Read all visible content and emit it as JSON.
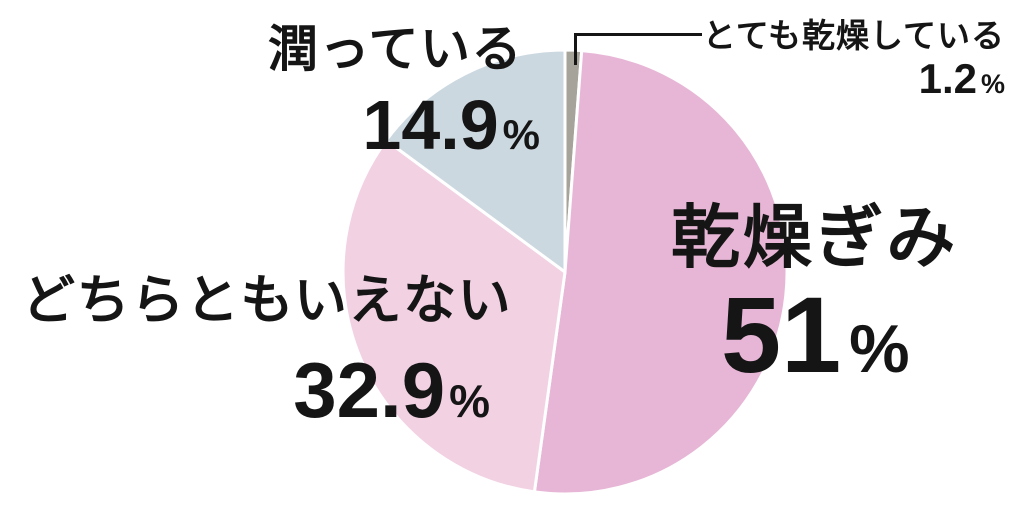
{
  "chart_data": {
    "type": "pie",
    "title": "",
    "unit": "%",
    "start_angle_deg": 0,
    "direction": "clockwise",
    "legend_position": "none",
    "labels_on_chart": true,
    "slice_stroke": "#ffffff",
    "slice_stroke_width": 3,
    "text_color": "#151515",
    "slices": [
      {
        "label": "とても乾燥している",
        "value": 1.2,
        "value_display": "1.2",
        "unit": "%",
        "color": "#a6a39a",
        "label_style": "callout-top-right"
      },
      {
        "label": "乾燥ぎみ",
        "value": 51,
        "value_display": "51",
        "unit": "%",
        "color": "#e7b6d6",
        "label_style": "inside-right"
      },
      {
        "label": "どちらともいえない",
        "value": 32.9,
        "value_display": "32.9",
        "unit": "%",
        "color": "#f2d1e3",
        "label_style": "outside-left"
      },
      {
        "label": "潤っている",
        "value": 14.9,
        "value_display": "14.9",
        "unit": "%",
        "color": "#ccd8e0",
        "label_style": "outside-top-left"
      }
    ]
  }
}
